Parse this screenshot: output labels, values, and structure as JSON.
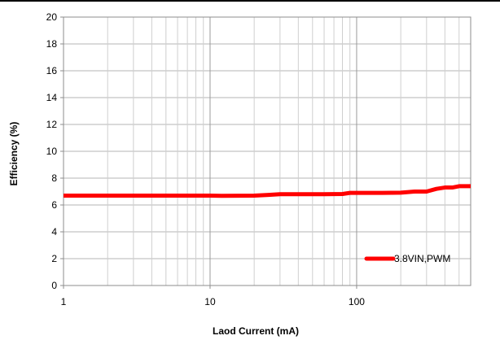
{
  "chart_data": {
    "type": "line",
    "xlabel": "Laod Current (mA)",
    "ylabel": "Efficiency (%)",
    "x_scale": "log",
    "xlim": [
      1,
      600
    ],
    "ylim": [
      0,
      20
    ],
    "x_ticks": [
      "1",
      "10",
      "100"
    ],
    "y_ticks": [
      "0",
      "2",
      "4",
      "6",
      "8",
      "10",
      "12",
      "14",
      "16",
      "18",
      "20"
    ],
    "grid": true,
    "legend_position": "bottom-right",
    "series": [
      {
        "name": "3.8VIN,PWM",
        "color": "#ff0000",
        "x": [
          1,
          2,
          5,
          10,
          12,
          20,
          25,
          30,
          40,
          60,
          80,
          90,
          100,
          150,
          200,
          250,
          300,
          350,
          400,
          450,
          500,
          550,
          600
        ],
        "y": [
          6.7,
          6.7,
          6.7,
          6.7,
          6.68,
          6.7,
          6.75,
          6.8,
          6.8,
          6.8,
          6.82,
          6.9,
          6.9,
          6.9,
          6.92,
          7.0,
          7.0,
          7.2,
          7.3,
          7.3,
          7.4,
          7.4,
          7.4
        ]
      }
    ]
  }
}
